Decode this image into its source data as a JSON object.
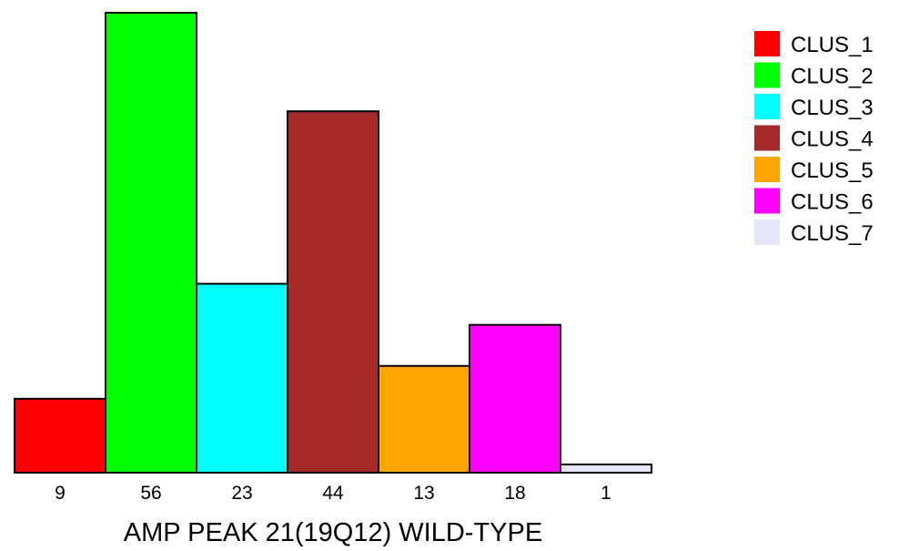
{
  "chart_data": {
    "type": "bar",
    "categories": [
      "CLUS_1",
      "CLUS_2",
      "CLUS_3",
      "CLUS_4",
      "CLUS_5",
      "CLUS_6",
      "CLUS_7"
    ],
    "values": [
      9,
      56,
      23,
      44,
      13,
      18,
      1
    ],
    "value_labels": [
      "9",
      "56",
      "23",
      "44",
      "13",
      "18",
      "1"
    ],
    "colors": [
      "#ff0000",
      "#00ff00",
      "#00ffff",
      "#a52a2a",
      "#ffa500",
      "#ff00ff",
      "#e6e6fa"
    ],
    "title": "",
    "xlabel": "AMP PEAK 21(19Q12) WILD-TYPE",
    "ylabel": "",
    "ylim": [
      0,
      56
    ],
    "grid": false,
    "legend": {
      "position": "top-right",
      "entries": [
        "CLUS_1",
        "CLUS_2",
        "CLUS_3",
        "CLUS_4",
        "CLUS_5",
        "CLUS_6",
        "CLUS_7"
      ]
    }
  }
}
